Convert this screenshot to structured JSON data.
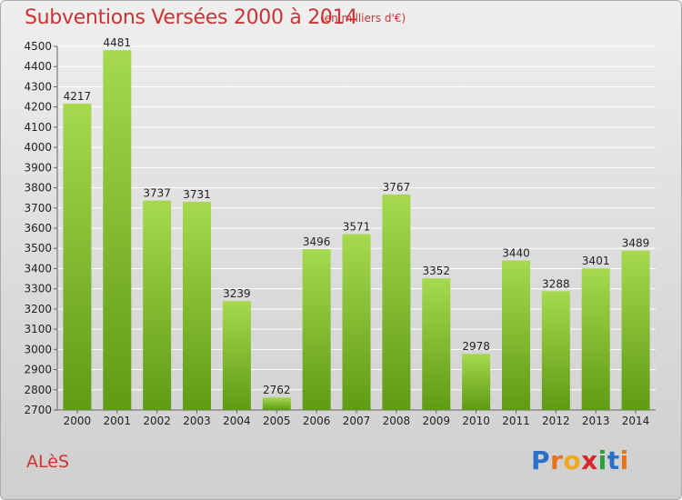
{
  "title": "Subventions Versées 2000 à 2014",
  "subtitle": "(en milliers d'€)",
  "city": "ALèS",
  "logo": {
    "letters": [
      "P",
      "r",
      "o",
      "x",
      "i",
      "t",
      "i"
    ],
    "colors": [
      "#2a6fc9",
      "#e8731a",
      "#f0a81c",
      "#d9262b",
      "#2a9d3c",
      "#2a6fc9",
      "#e8731a"
    ]
  },
  "colors": {
    "bar_top": "#a6d94e",
    "bar_bottom": "#5f9b14",
    "grid": "#ffffff"
  },
  "chart_data": {
    "type": "bar",
    "categories": [
      "2000",
      "2001",
      "2002",
      "2003",
      "2004",
      "2005",
      "2006",
      "2007",
      "2008",
      "2009",
      "2010",
      "2011",
      "2012",
      "2013",
      "2014"
    ],
    "values": [
      4217,
      4481,
      3737,
      3731,
      3239,
      2762,
      3496,
      3571,
      3767,
      3352,
      2978,
      3440,
      3288,
      3401,
      3489
    ],
    "ylim": [
      2700,
      4500
    ],
    "yticks": [
      2700,
      2800,
      2900,
      3000,
      3100,
      3200,
      3300,
      3400,
      3500,
      3600,
      3700,
      3800,
      3900,
      4000,
      4100,
      4200,
      4300,
      4400,
      4500
    ],
    "grid": true,
    "title": "Subventions Versées 2000 à 2014",
    "xlabel": "",
    "ylabel": ""
  }
}
